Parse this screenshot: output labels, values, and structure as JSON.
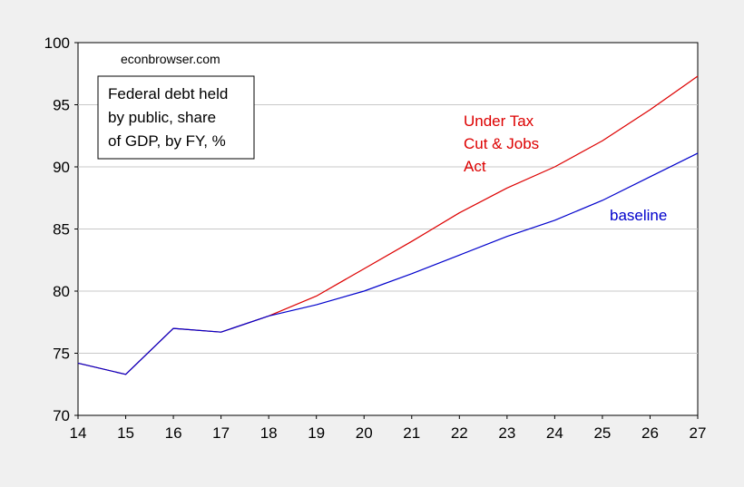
{
  "chart_data": {
    "type": "line",
    "watermark": "econbrowser.com",
    "title_box": [
      "Federal debt held",
      "by public, share",
      "of GDP, by FY, %"
    ],
    "x": [
      14,
      15,
      16,
      17,
      18,
      19,
      20,
      21,
      22,
      23,
      24,
      25,
      26,
      27
    ],
    "xlim": [
      14,
      27
    ],
    "ylim": [
      70,
      100
    ],
    "x_ticks": [
      "14",
      "15",
      "16",
      "17",
      "18",
      "19",
      "20",
      "21",
      "22",
      "23",
      "24",
      "25",
      "26",
      "27"
    ],
    "y_ticks": [
      "70",
      "75",
      "80",
      "85",
      "90",
      "95",
      "100"
    ],
    "grid": "horizontal",
    "series": [
      {
        "name": "baseline",
        "color": "#0000cc",
        "values": [
          74.2,
          73.3,
          77.0,
          76.7,
          78.0,
          78.9,
          80.0,
          81.4,
          82.9,
          84.4,
          85.7,
          87.3,
          89.2,
          91.1
        ]
      },
      {
        "name": "Under Tax Cut & Jobs Act",
        "color": "#dd0000",
        "values": [
          74.2,
          73.3,
          77.0,
          76.7,
          78.0,
          79.6,
          81.8,
          84.0,
          86.3,
          88.3,
          90.0,
          92.1,
          94.6,
          97.3
        ]
      }
    ],
    "annotations": [
      {
        "lines": [
          "Under Tax",
          "Cut & Jobs",
          "Act"
        ],
        "color": "#dd0000"
      },
      {
        "lines": [
          "baseline"
        ],
        "color": "#0000cc"
      }
    ]
  }
}
